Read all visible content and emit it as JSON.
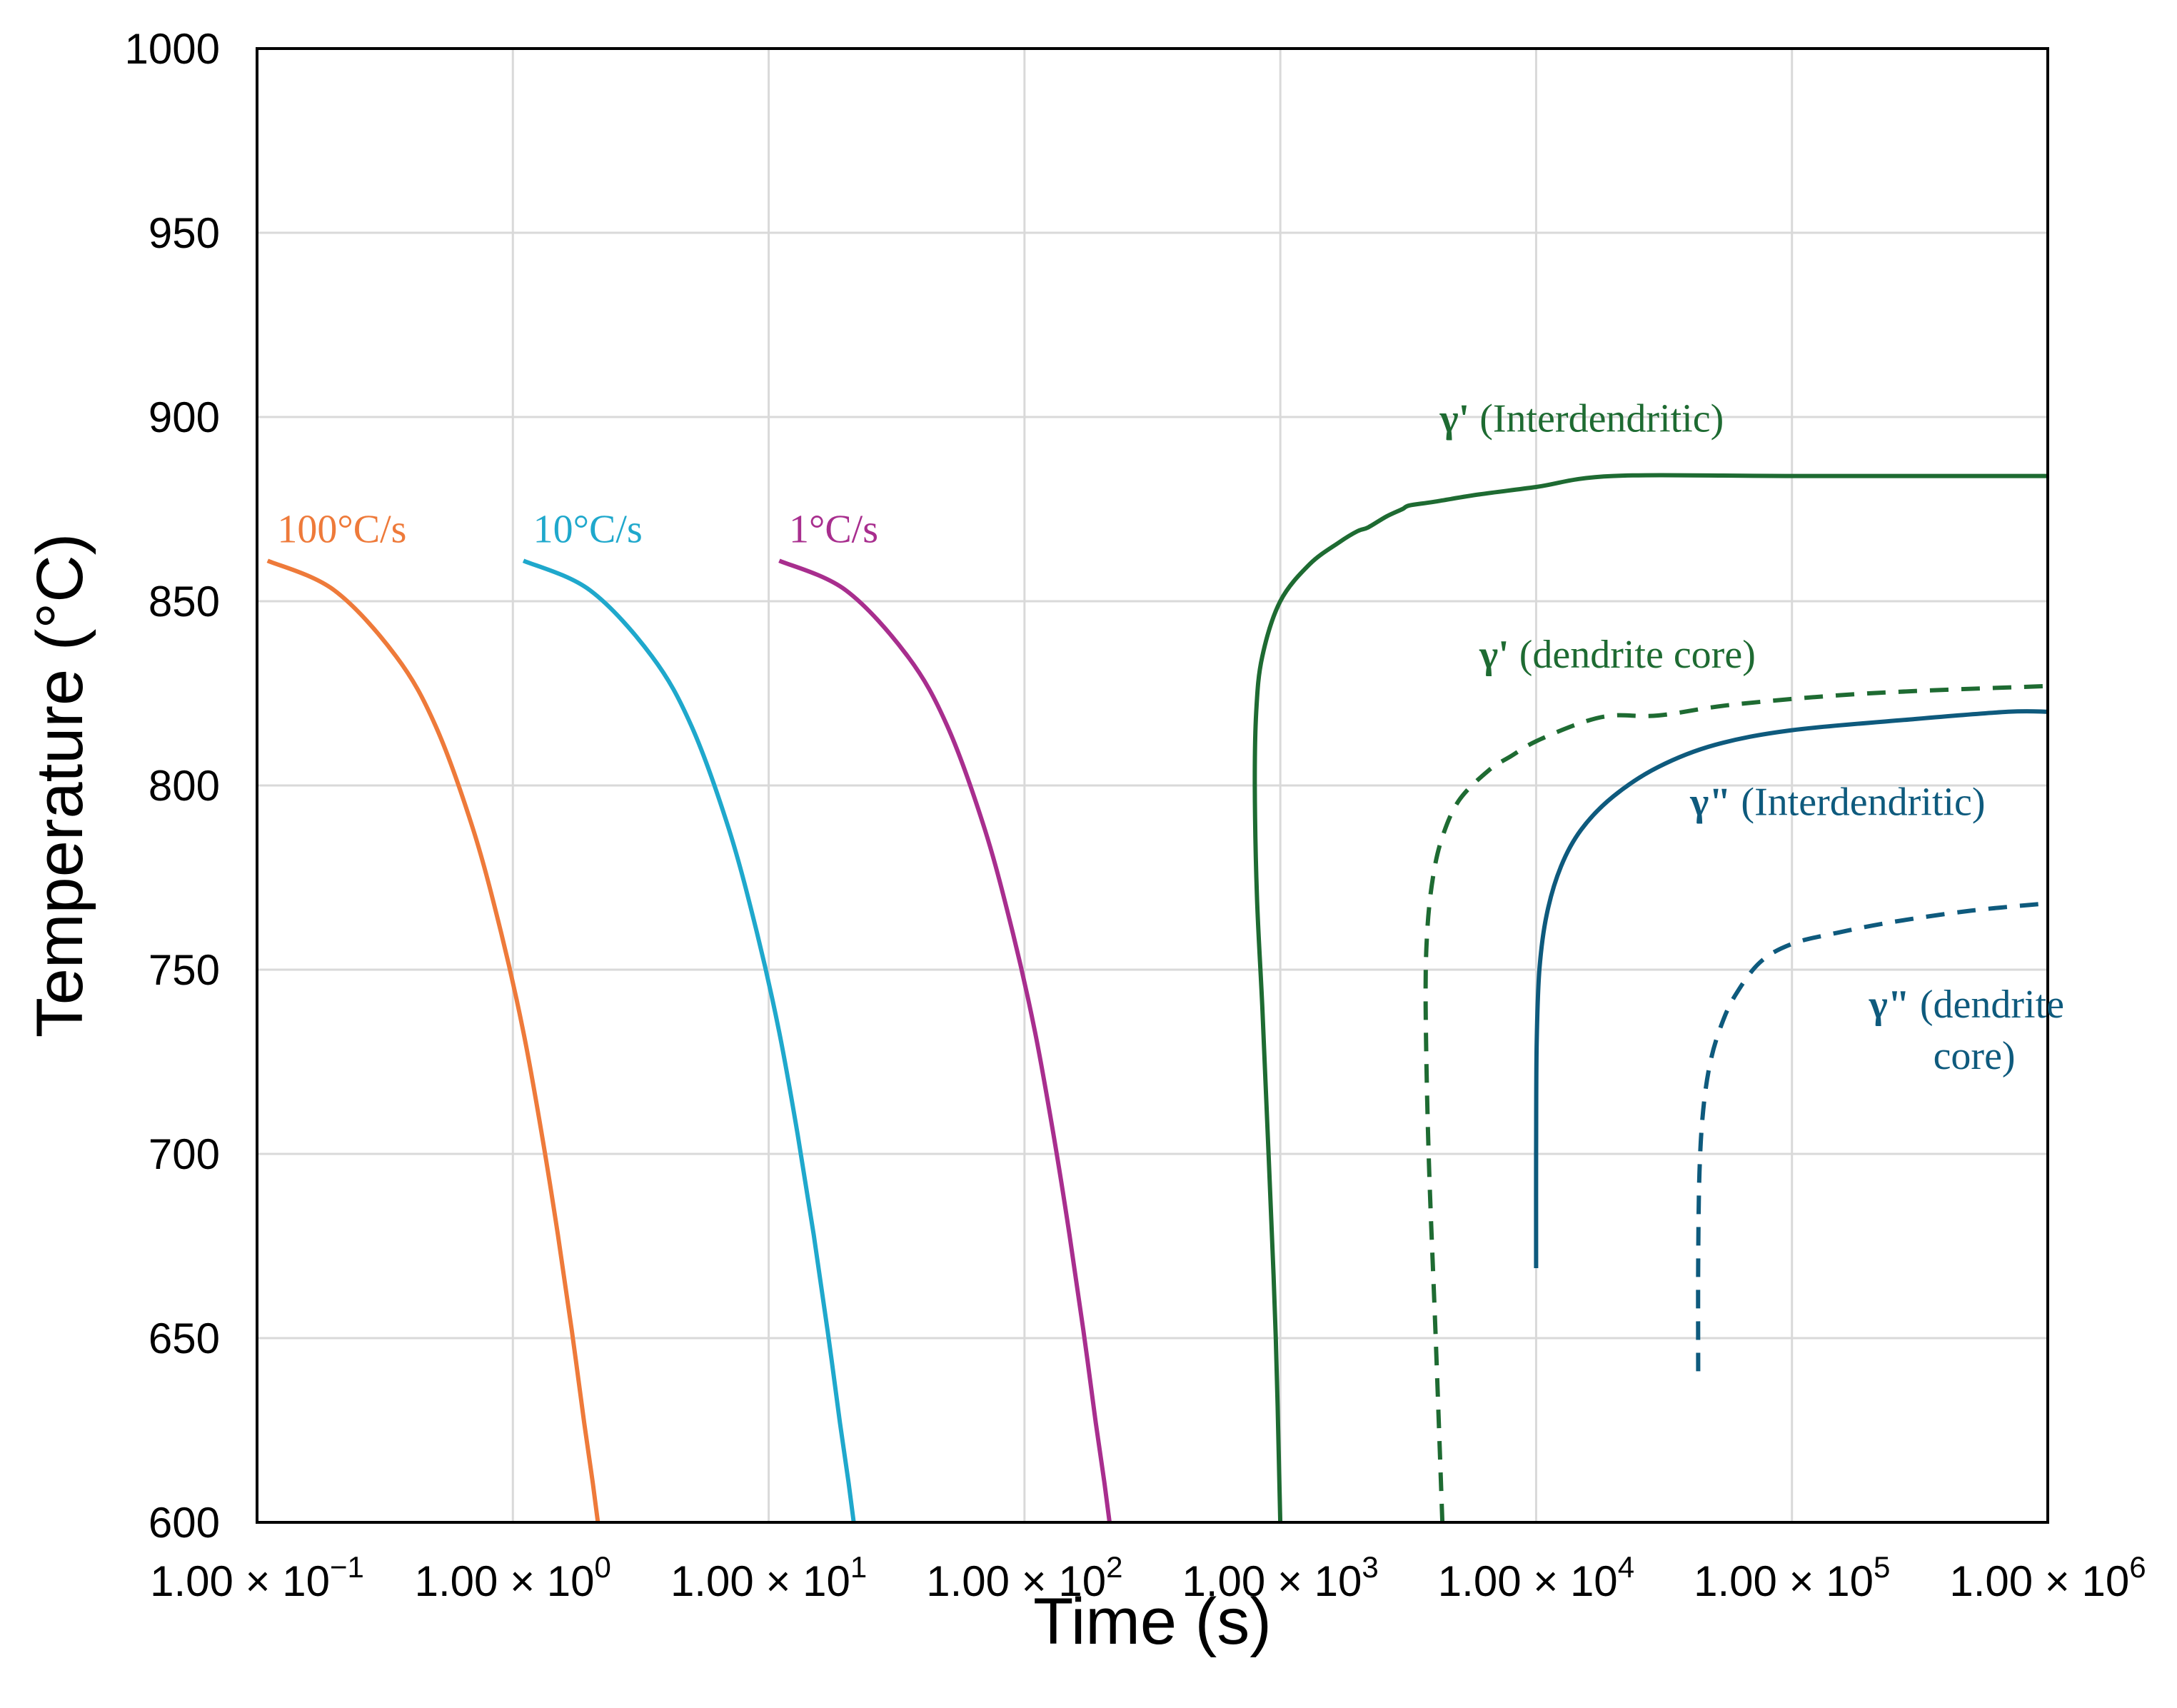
{
  "chart_data": {
    "type": "line",
    "title": "",
    "xlabel": "Time (s)",
    "ylabel": "Temperature (°C)",
    "x_scale": "log",
    "xlim": [
      0.1,
      1000000
    ],
    "ylim": [
      600,
      1000
    ],
    "grid": true,
    "x_ticks": [
      {
        "value": 0.1,
        "mantissa": "1.00",
        "exp": "−1"
      },
      {
        "value": 1,
        "mantissa": "1.00",
        "exp": "0"
      },
      {
        "value": 10,
        "mantissa": "1.00",
        "exp": "1"
      },
      {
        "value": 100,
        "mantissa": "1.00",
        "exp": "2"
      },
      {
        "value": 1000,
        "mantissa": "1.00",
        "exp": "3"
      },
      {
        "value": 10000,
        "mantissa": "1.00",
        "exp": "4"
      },
      {
        "value": 100000,
        "mantissa": "1.00",
        "exp": "5"
      },
      {
        "value": 1000000,
        "mantissa": "1.00",
        "exp": "6"
      }
    ],
    "y_ticks": [
      600,
      650,
      700,
      750,
      800,
      850,
      900,
      950,
      1000
    ],
    "series": [
      {
        "name": "100°C/s",
        "group": "cooling",
        "color": "#EE7A3A",
        "dashed": false,
        "x": [
          0.11,
          0.2,
          0.35,
          0.5,
          0.7,
          0.9,
          1.1,
          1.3,
          1.5,
          1.7,
          1.9,
          2.05,
          2.15
        ],
        "y": [
          861,
          853,
          835,
          816,
          788,
          760,
          733,
          705,
          678,
          652,
          627,
          611,
          600
        ],
        "label_x": 0.12,
        "label_y": 866
      },
      {
        "name": "10°C/s",
        "group": "cooling",
        "color": "#1FA8CC",
        "dashed": false,
        "x": [
          1.1,
          2,
          3.5,
          5,
          7,
          9,
          11,
          13,
          15,
          17,
          19,
          20.5,
          21.5
        ],
        "y": [
          861,
          853,
          835,
          816,
          788,
          760,
          733,
          705,
          678,
          652,
          627,
          611,
          600
        ],
        "label_x": 1.2,
        "label_y": 866
      },
      {
        "name": "1°C/s",
        "group": "cooling",
        "color": "#A82E8E",
        "dashed": false,
        "x": [
          11,
          20,
          35,
          50,
          70,
          90,
          110,
          130,
          150,
          170,
          190,
          205,
          215
        ],
        "y": [
          861,
          853,
          835,
          816,
          788,
          760,
          733,
          705,
          678,
          652,
          627,
          611,
          600
        ],
        "label_x": 12,
        "label_y": 866
      },
      {
        "name": "γ' (Interdendritic)",
        "group": "phase",
        "color": "#1E6B32",
        "dashed": false,
        "x": [
          1000,
          960,
          900,
          850,
          810,
          795,
          805,
          850,
          1000,
          1300,
          1700,
          2000,
          2200,
          2600,
          3000,
          3200,
          4000,
          6000,
          10000,
          20000,
          100000,
          1000000
        ],
        "y": [
          600,
          650,
          700,
          740,
          770,
          800,
          820,
          835,
          850,
          860,
          866,
          869,
          870,
          873,
          875,
          876,
          877,
          879,
          881,
          884,
          884,
          884
        ],
        "label_x": 4200,
        "label_y": 896,
        "label_prefix": "γ'",
        "label_rest": " (Interdendritic)"
      },
      {
        "name": "γ' (dendrite core)",
        "group": "phase",
        "color": "#1E6B32",
        "dashed": true,
        "x": [
          4300,
          4050,
          3800,
          3700,
          3750,
          3950,
          4300,
          5000,
          6500,
          8000,
          10000,
          15000,
          20000,
          30000,
          60000,
          200000,
          1000000
        ],
        "y": [
          600,
          650,
          700,
          740,
          760,
          775,
          786,
          796,
          804,
          808,
          812,
          817,
          819,
          819,
          822,
          825,
          827
        ],
        "label_x": 6000,
        "label_y": 832,
        "label_prefix": "γ'",
        "label_rest": " (dendrite core)"
      },
      {
        "name": "γ\" (Interdendritic)",
        "group": "phase",
        "color": "#0E5A7D",
        "dashed": false,
        "x": [
          10000,
          10000,
          10050,
          10300,
          11000,
          12500,
          15000,
          20000,
          30000,
          50000,
          100000,
          300000,
          700000,
          1000000
        ],
        "y": [
          669,
          700,
          730,
          750,
          765,
          778,
          788,
          797,
          805,
          811,
          815,
          818,
          820,
          820
        ],
        "label_x": 40000,
        "label_y": 792,
        "label_prefix": "γ\"",
        "label_rest": " (Interdendritic)"
      },
      {
        "name": "γ\" (dendrite core)",
        "group": "phase",
        "color": "#0E5A7D",
        "dashed": true,
        "x": [
          43000,
          43000,
          43500,
          45000,
          48000,
          53000,
          60000,
          75000,
          100000,
          150000,
          250000,
          500000,
          1000000
        ],
        "y": [
          641,
          670,
          695,
          712,
          725,
          735,
          743,
          752,
          757,
          760,
          763,
          766,
          768
        ],
        "label_x": 200000,
        "label_y": 737,
        "label_prefix": "γ\"",
        "label_rest": " (dendrite",
        "label_line2": "core)"
      }
    ]
  }
}
